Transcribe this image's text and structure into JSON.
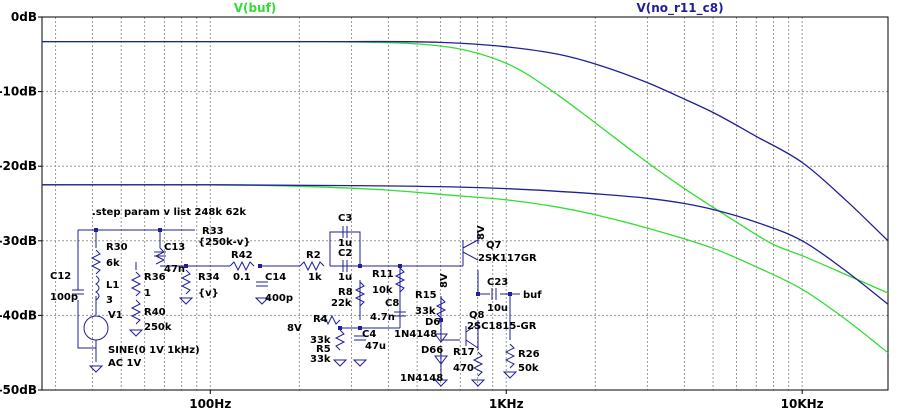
{
  "chart_data": {
    "type": "line",
    "x_scale": "log",
    "x_unit": "Hz",
    "y_unit": "dB",
    "xlim": [
      27,
      19500
    ],
    "ylim": [
      -50,
      0
    ],
    "grid": true,
    "legend_placement": "top",
    "x_ticks": [
      {
        "value": 100,
        "label": "100Hz"
      },
      {
        "value": 1000,
        "label": "1KHz"
      },
      {
        "value": 10000,
        "label": "10KHz"
      }
    ],
    "y_ticks": [
      {
        "value": 0,
        "label": "0dB"
      },
      {
        "value": -10,
        "label": "-10dB"
      },
      {
        "value": -20,
        "label": "-20dB"
      },
      {
        "value": -30,
        "label": "-30dB"
      },
      {
        "value": -40,
        "label": "-40dB"
      },
      {
        "value": -50,
        "label": "-50dB"
      }
    ],
    "series": [
      {
        "name": "V(buf)",
        "color": "#33dd33",
        "step": "v=248k",
        "points": [
          [
            27,
            -3.3
          ],
          [
            100,
            -3.3
          ],
          [
            200,
            -3.3
          ],
          [
            300,
            -3.35
          ],
          [
            500,
            -3.6
          ],
          [
            700,
            -4.3
          ],
          [
            900,
            -5.5
          ],
          [
            1100,
            -7.0
          ],
          [
            1500,
            -10.5
          ],
          [
            2000,
            -14.2
          ],
          [
            3000,
            -19.5
          ],
          [
            4000,
            -23.0
          ],
          [
            6000,
            -27.5
          ],
          [
            8000,
            -30.5
          ],
          [
            10000,
            -32.0
          ],
          [
            14000,
            -34.5
          ],
          [
            19500,
            -37.0
          ]
        ]
      },
      {
        "name": "V(buf)",
        "color": "#33dd33",
        "step": "v=62k",
        "points": [
          [
            27,
            -22.5
          ],
          [
            100,
            -22.5
          ],
          [
            200,
            -22.7
          ],
          [
            400,
            -23.2
          ],
          [
            700,
            -24.0
          ],
          [
            1000,
            -24.5
          ],
          [
            1500,
            -25.5
          ],
          [
            2000,
            -26.5
          ],
          [
            3000,
            -28.3
          ],
          [
            5000,
            -31.0
          ],
          [
            7000,
            -33.5
          ],
          [
            10000,
            -36.5
          ],
          [
            14000,
            -40.5
          ],
          [
            19500,
            -45.0
          ]
        ]
      },
      {
        "name": "V(no_r11_c8)",
        "color": "#1f1f99",
        "step": "v=248k",
        "points": [
          [
            27,
            -3.3
          ],
          [
            100,
            -3.3
          ],
          [
            300,
            -3.3
          ],
          [
            600,
            -3.4
          ],
          [
            1000,
            -4.0
          ],
          [
            1500,
            -5.0
          ],
          [
            2000,
            -6.3
          ],
          [
            3000,
            -8.8
          ],
          [
            4000,
            -11.0
          ],
          [
            5000,
            -12.8
          ],
          [
            7000,
            -16.0
          ],
          [
            10000,
            -19.5
          ],
          [
            14000,
            -24.5
          ],
          [
            19500,
            -30.0
          ]
        ]
      },
      {
        "name": "V(no_r11_c8)",
        "color": "#1f1f99",
        "step": "v=62k",
        "points": [
          [
            27,
            -22.5
          ],
          [
            100,
            -22.5
          ],
          [
            300,
            -22.6
          ],
          [
            700,
            -22.8
          ],
          [
            1000,
            -23.0
          ],
          [
            2000,
            -23.7
          ],
          [
            3000,
            -24.3
          ],
          [
            4000,
            -25.0
          ],
          [
            5000,
            -25.8
          ],
          [
            7000,
            -27.5
          ],
          [
            10000,
            -30.0
          ],
          [
            14000,
            -34.0
          ],
          [
            19500,
            -38.5
          ]
        ]
      }
    ]
  },
  "legend": {
    "buf": {
      "label": "V(buf)",
      "color": "#33dd33"
    },
    "no_r11_c8": {
      "label": "V(no_r11_c8)",
      "color": "#1f1f99"
    }
  },
  "schematic": {
    "step_directive": ".step param v list 248k 62k",
    "labels": {
      "r30": "R30",
      "r30_val": "6k",
      "r33": "R33",
      "r33_val": "{250k-v}",
      "c13": "C13",
      "c13_val": "47n",
      "c12": "C12",
      "c12_val": "100p",
      "l1": "L1",
      "l1_val": "3",
      "r36": "R36",
      "r36_val": "1",
      "r34": "R34",
      "r34_val": "{v}",
      "r42": "R42",
      "r42_val": "0.1",
      "c14": "C14",
      "c14_val": "400p",
      "r40": "R40",
      "r40_val": "250k",
      "v1": "V1",
      "v1_sine": "SINE(0 1V 1kHz)",
      "v1_ac": "AC 1V",
      "c3": "C3",
      "c3_val": "1u",
      "c2": "C2",
      "c2_val": "1u",
      "r2": "R2",
      "r2_val": "1k",
      "r8": "R8",
      "r8_val": "22k",
      "r11": "R11",
      "r11_val": "10k",
      "c8": "C8",
      "c8_val": "4.7n",
      "r4": "R4",
      "r4_val": "33k",
      "r5": "R5",
      "r5_val": "33k",
      "c4": "C4",
      "c4_val": "47u",
      "v_8v": "8V",
      "v_8v_q7": "8V",
      "v_8v_r15": "8V",
      "d6": "D6",
      "d6_val": "1N4148",
      "d66": "D66",
      "d66_val": "1N4148",
      "r15": "R15",
      "r15_val": "33k",
      "q7": "Q7",
      "q7_val": "2SK117GR",
      "q8": "Q8",
      "q8_val": "2SC1815-GR",
      "r17": "R17",
      "r17_val": "470",
      "c23": "C23",
      "c23_val": "10u",
      "buf": "buf",
      "r26": "R26",
      "r26_val": "50k"
    }
  }
}
